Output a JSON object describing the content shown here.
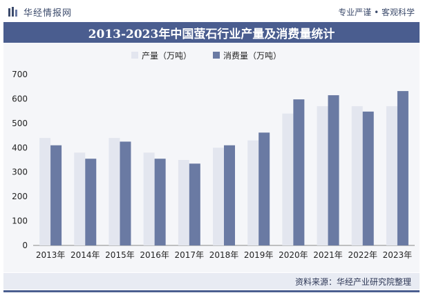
{
  "header": {
    "brand_name": "华经情报网",
    "tagline": "专业严谨 • 客观科学"
  },
  "footer": {
    "source": "资料来源：华经产业研究院整理"
  },
  "colors": {
    "production": "#e3e6ef",
    "consumption": "#6a7aa3",
    "band": "#4a5d8f"
  },
  "chart_data": {
    "type": "bar",
    "title": "2013-2023年中国萤石行业产量及消费量统计",
    "xlabel": "",
    "ylabel": "",
    "ylim": [
      0,
      700
    ],
    "yticks": [
      0,
      100,
      200,
      300,
      400,
      500,
      600,
      700
    ],
    "legend_position": "top",
    "categories": [
      "2013年",
      "2014年",
      "2015年",
      "2016年",
      "2017年",
      "2018年",
      "2019年",
      "2020年",
      "2021年",
      "2022年",
      "2023年"
    ],
    "series": [
      {
        "name": "产量（万吨）",
        "values": [
          440,
          380,
          440,
          380,
          350,
          400,
          430,
          540,
          570,
          570,
          570
        ]
      },
      {
        "name": "消费量（万吨）",
        "values": [
          410,
          355,
          425,
          355,
          335,
          410,
          462,
          598,
          615,
          548,
          632
        ]
      }
    ]
  }
}
